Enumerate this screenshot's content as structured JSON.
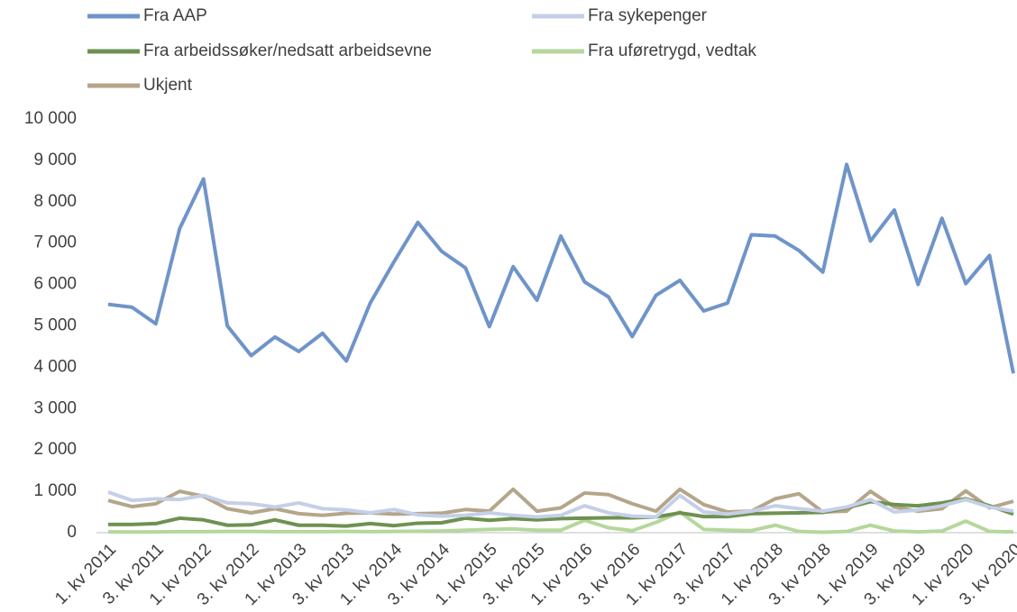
{
  "chart_data": {
    "type": "line",
    "categories": [
      "1. kv 2011",
      null,
      "3. kv 2011",
      null,
      "1. kv 2012",
      null,
      "3. kv 2012",
      null,
      "1. kv 2013",
      null,
      "3. kv 2013",
      null,
      "1. kv 2014",
      null,
      "3. kv 2014",
      null,
      "1. kv 2015",
      null,
      "3. kv 2015",
      null,
      "1. kv 2016",
      null,
      "3. kv 2016",
      null,
      "1. kv 2017",
      null,
      "3. kv 2017",
      null,
      "1. kv 2018",
      null,
      "3. kv 2018",
      null,
      "1. kv 2019",
      null,
      "3. kv 2019",
      null,
      "1. kv 2020",
      null,
      "3. kv 2020"
    ],
    "series": [
      {
        "name": "Fra AAP",
        "color": "#6f94c9",
        "values": [
          5520,
          5450,
          5050,
          7350,
          8550,
          5000,
          4280,
          4730,
          4380,
          4820,
          4150,
          5550,
          6550,
          7500,
          6800,
          6400,
          4980,
          6430,
          5620,
          7170,
          6060,
          5700,
          4740,
          5740,
          6100,
          5360,
          5550,
          7200,
          7170,
          6820,
          6300,
          8900,
          7050,
          7800,
          6000,
          7600,
          6020,
          6700,
          3850
        ]
      },
      {
        "name": "Fra sykepenger",
        "color": "#c5cfe8",
        "values": [
          980,
          780,
          820,
          800,
          900,
          720,
          700,
          620,
          720,
          580,
          550,
          480,
          560,
          430,
          400,
          420,
          480,
          420,
          380,
          420,
          650,
          480,
          400,
          380,
          900,
          500,
          450,
          520,
          650,
          580,
          520,
          620,
          800,
          500,
          550,
          650,
          800,
          620,
          520
        ]
      },
      {
        "name": "Fra arbeidssøker/nedsatt arbeidsevne",
        "color": "#6e9150",
        "values": [
          200,
          200,
          220,
          350,
          310,
          180,
          190,
          310,
          180,
          180,
          160,
          220,
          170,
          230,
          240,
          350,
          300,
          340,
          310,
          340,
          350,
          360,
          360,
          380,
          480,
          390,
          390,
          460,
          470,
          480,
          490,
          600,
          750,
          680,
          650,
          720,
          820,
          650,
          450
        ]
      },
      {
        "name": "Fra uføretrygd, vedtak",
        "color": "#b5d79c",
        "values": [
          20,
          15,
          20,
          25,
          25,
          30,
          30,
          25,
          25,
          25,
          30,
          25,
          30,
          35,
          40,
          60,
          80,
          90,
          60,
          60,
          300,
          120,
          50,
          250,
          500,
          80,
          60,
          50,
          180,
          30,
          10,
          30,
          180,
          40,
          20,
          40,
          280,
          30,
          20
        ]
      },
      {
        "name": "Ukjent",
        "color": "#b5a58a",
        "values": [
          780,
          630,
          700,
          1000,
          880,
          580,
          480,
          580,
          460,
          420,
          470,
          480,
          450,
          460,
          470,
          560,
          520,
          1050,
          520,
          600,
          960,
          920,
          700,
          520,
          1050,
          680,
          500,
          520,
          820,
          940,
          500,
          520,
          1000,
          620,
          520,
          580,
          1010,
          600,
          760
        ]
      }
    ],
    "ylim": [
      0,
      10000
    ],
    "yticks": [
      0,
      {
        "value": 1000,
        "label": "1 000"
      },
      {
        "value": 2000,
        "label": "2 000"
      },
      {
        "value": 3000,
        "label": "3 000"
      },
      {
        "value": 4000,
        "label": "4 000"
      },
      {
        "value": 5000,
        "label": "5 000"
      },
      {
        "value": 6000,
        "label": "6 000"
      },
      {
        "value": 7000,
        "label": "7 000"
      },
      {
        "value": 8000,
        "label": "8 000"
      },
      {
        "value": 9000,
        "label": "9 000"
      },
      {
        "value": 10000,
        "label": "10 000"
      }
    ],
    "grid": false,
    "legend": "top"
  }
}
